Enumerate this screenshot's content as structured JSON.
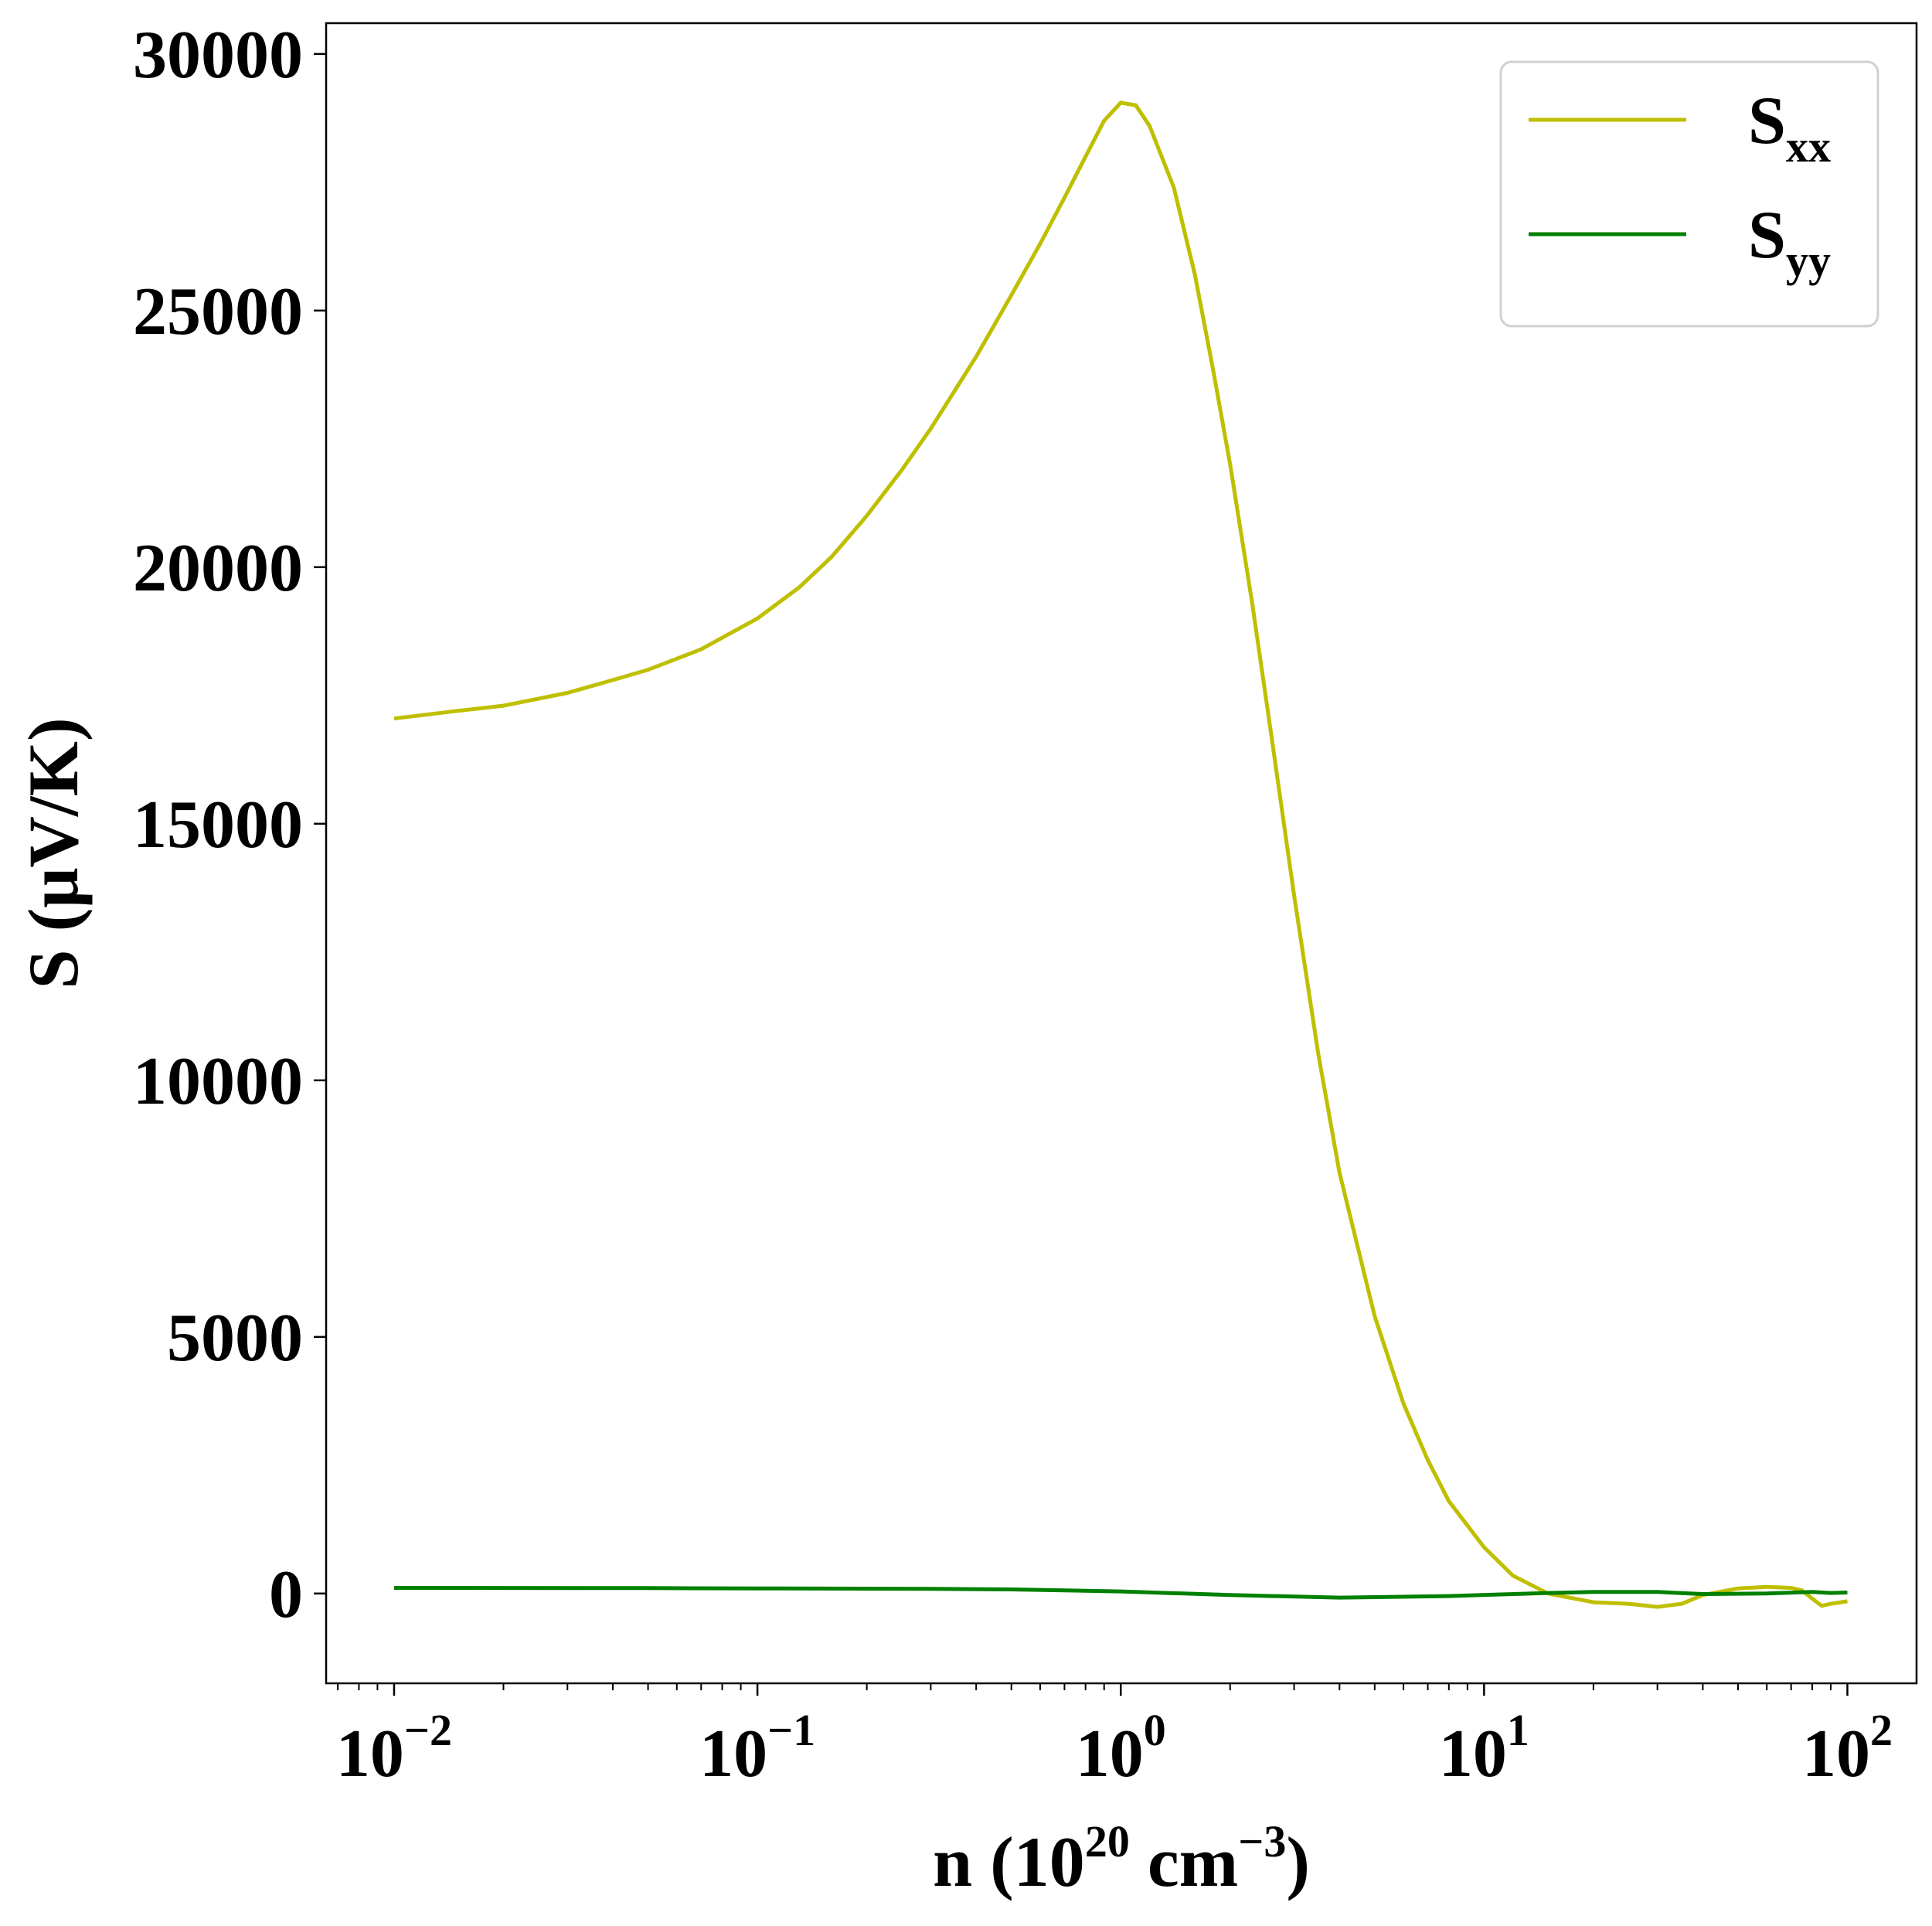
{
  "chart_data": {
    "type": "line",
    "xlabel": "n (10^20 cm^-3)",
    "xlabel_parts": {
      "prefix": "n (10",
      "sup1": "20",
      "mid": " cm",
      "sup2": "−3",
      "suffix": ")"
    },
    "ylabel": "S (μV/K)",
    "xscale": "log",
    "xlim": [
      0.0065,
      155
    ],
    "ylim": [
      -1750,
      30600
    ],
    "grid": false,
    "legend_position": "top-right",
    "x_ticks": [
      {
        "value": 0.01,
        "base": "10",
        "exp": "−2"
      },
      {
        "value": 0.1,
        "base": "10",
        "exp": "−1"
      },
      {
        "value": 1,
        "base": "10",
        "exp": "0"
      },
      {
        "value": 10,
        "base": "10",
        "exp": "1"
      },
      {
        "value": 100,
        "base": "10",
        "exp": "2"
      }
    ],
    "y_ticks": [
      0,
      5000,
      10000,
      15000,
      20000,
      25000,
      30000
    ],
    "y_tick_labels": [
      "0",
      "5000",
      "10000",
      "15000",
      "20000",
      "25000",
      "30000"
    ],
    "series": [
      {
        "name": "S",
        "subscript": "xx",
        "color": "#bfbf00",
        "points": [
          [
            0.01,
            17050
          ],
          [
            0.015,
            17200
          ],
          [
            0.02,
            17300
          ],
          [
            0.03,
            17550
          ],
          [
            0.04,
            17800
          ],
          [
            0.05,
            18000
          ],
          [
            0.07,
            18400
          ],
          [
            0.1,
            19000
          ],
          [
            0.13,
            19600
          ],
          [
            0.16,
            20200
          ],
          [
            0.2,
            21000
          ],
          [
            0.25,
            21900
          ],
          [
            0.3,
            22700
          ],
          [
            0.4,
            24100
          ],
          [
            0.5,
            25300
          ],
          [
            0.6,
            26300
          ],
          [
            0.7,
            27200
          ],
          [
            0.8,
            28000
          ],
          [
            0.9,
            28700
          ],
          [
            1.0,
            29050
          ],
          [
            1.1,
            29000
          ],
          [
            1.2,
            28600
          ],
          [
            1.4,
            27400
          ],
          [
            1.6,
            25700
          ],
          [
            1.8,
            23800
          ],
          [
            2.0,
            22000
          ],
          [
            2.3,
            19300
          ],
          [
            2.6,
            16700
          ],
          [
            3.0,
            13600
          ],
          [
            3.5,
            10500
          ],
          [
            4.0,
            8200
          ],
          [
            5.0,
            5400
          ],
          [
            6.0,
            3700
          ],
          [
            7.0,
            2600
          ],
          [
            8.0,
            1800
          ],
          [
            10.0,
            900
          ],
          [
            12.0,
            350
          ],
          [
            15.0,
            0
          ],
          [
            20.0,
            -170
          ],
          [
            25.0,
            -200
          ],
          [
            30.0,
            -260
          ],
          [
            35.0,
            -200
          ],
          [
            40.0,
            -30
          ],
          [
            50.0,
            100
          ],
          [
            60.0,
            130
          ],
          [
            70.0,
            110
          ],
          [
            75.0,
            60
          ],
          [
            80.0,
            -100
          ],
          [
            85.0,
            -240
          ],
          [
            90.0,
            -200
          ],
          [
            100.0,
            -150
          ]
        ]
      },
      {
        "name": "S",
        "subscript": "yy",
        "color": "#008000",
        "points": [
          [
            0.01,
            110
          ],
          [
            0.05,
            105
          ],
          [
            0.1,
            100
          ],
          [
            0.3,
            90
          ],
          [
            0.5,
            80
          ],
          [
            1.0,
            40
          ],
          [
            2.0,
            -30
          ],
          [
            4.0,
            -80
          ],
          [
            8.0,
            -50
          ],
          [
            15.0,
            10
          ],
          [
            20.0,
            30
          ],
          [
            30.0,
            30
          ],
          [
            40.0,
            -10
          ],
          [
            60.0,
            0
          ],
          [
            80.0,
            30
          ],
          [
            90.0,
            10
          ],
          [
            100.0,
            20
          ]
        ]
      }
    ]
  }
}
